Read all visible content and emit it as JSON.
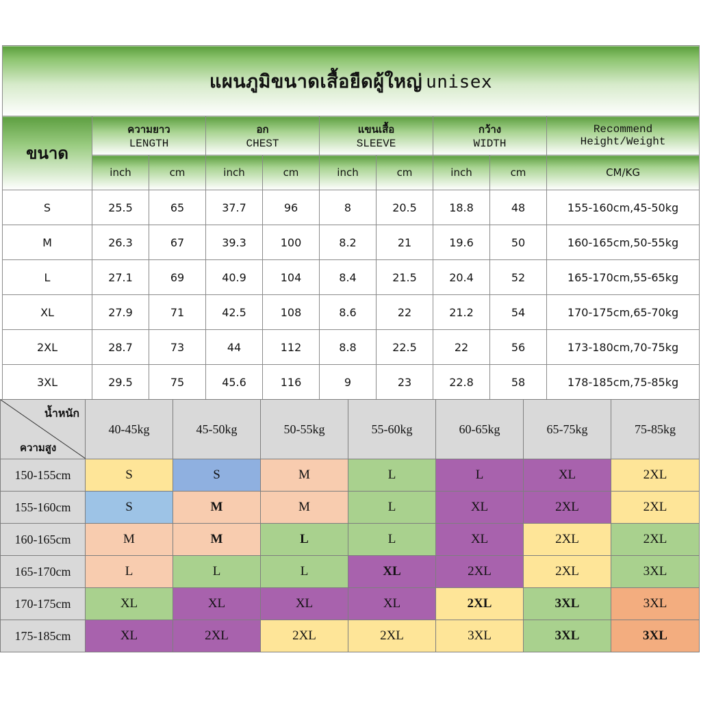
{
  "title": {
    "thai": "แผนภูมิขนาดเสื้อยืดผู้ใหญ่",
    "latin": "unisex"
  },
  "size_header": "ขนาด",
  "groups": [
    {
      "thai": "ความยาว",
      "en": "LENGTH"
    },
    {
      "thai": "อก",
      "en": "CHEST"
    },
    {
      "thai": "แขนเสื้อ",
      "en": "SLEEVE"
    },
    {
      "thai": "กว้าง",
      "en": "WIDTH"
    },
    {
      "thai": "Recommend",
      "en": "Height/Weight"
    }
  ],
  "units": {
    "inch": "inch",
    "cm": "cm",
    "recommend": "CM/KG"
  },
  "size_rows": [
    {
      "size": "S",
      "length_in": "25.5",
      "length_cm": "65",
      "chest_in": "37.7",
      "chest_cm": "96",
      "sleeve_in": "8",
      "sleeve_cm": "20.5",
      "width_in": "18.8",
      "width_cm": "48",
      "rec": "155-160cm,45-50kg"
    },
    {
      "size": "M",
      "length_in": "26.3",
      "length_cm": "67",
      "chest_in": "39.3",
      "chest_cm": "100",
      "sleeve_in": "8.2",
      "sleeve_cm": "21",
      "width_in": "19.6",
      "width_cm": "50",
      "rec": "160-165cm,50-55kg"
    },
    {
      "size": "L",
      "length_in": "27.1",
      "length_cm": "69",
      "chest_in": "40.9",
      "chest_cm": "104",
      "sleeve_in": "8.4",
      "sleeve_cm": "21.5",
      "width_in": "20.4",
      "width_cm": "52",
      "rec": "165-170cm,55-65kg"
    },
    {
      "size": "XL",
      "length_in": "27.9",
      "length_cm": "71",
      "chest_in": "42.5",
      "chest_cm": "108",
      "sleeve_in": "8.6",
      "sleeve_cm": "22",
      "width_in": "21.2",
      "width_cm": "54",
      "rec": "170-175cm,65-70kg"
    },
    {
      "size": "2XL",
      "length_in": "28.7",
      "length_cm": "73",
      "chest_in": "44",
      "chest_cm": "112",
      "sleeve_in": "8.8",
      "sleeve_cm": "22.5",
      "width_in": "22",
      "width_cm": "56",
      "rec": "173-180cm,70-75kg"
    },
    {
      "size": "3XL",
      "length_in": "29.5",
      "length_cm": "75",
      "chest_in": "45.6",
      "chest_cm": "116",
      "sleeve_in": "9",
      "sleeve_cm": "23",
      "width_in": "22.8",
      "width_cm": "58",
      "rec": "178-185cm,75-85kg"
    }
  ],
  "grid": {
    "weight_label": "น้ำหนัก",
    "height_label": "ความสูง",
    "weights": [
      "40-45kg",
      "45-50kg",
      "50-55kg",
      "55-60kg",
      "60-65kg",
      "65-75kg",
      "75-85kg"
    ],
    "rows": [
      {
        "height": "150-155cm",
        "cells": [
          {
            "v": "S",
            "c": "c-yellow"
          },
          {
            "v": "S",
            "c": "c-blue"
          },
          {
            "v": "M",
            "c": "c-peach"
          },
          {
            "v": "L",
            "c": "c-green"
          },
          {
            "v": "L",
            "c": "c-purple"
          },
          {
            "v": "XL",
            "c": "c-purple"
          },
          {
            "v": "2XL",
            "c": "c-yellow"
          }
        ]
      },
      {
        "height": "155-160cm",
        "cells": [
          {
            "v": "S",
            "c": "c-sky"
          },
          {
            "v": "M",
            "c": "c-peach",
            "b": true
          },
          {
            "v": "M",
            "c": "c-peach"
          },
          {
            "v": "L",
            "c": "c-green"
          },
          {
            "v": "XL",
            "c": "c-purple"
          },
          {
            "v": "2XL",
            "c": "c-purple"
          },
          {
            "v": "2XL",
            "c": "c-yellow"
          }
        ]
      },
      {
        "height": "160-165cm",
        "cells": [
          {
            "v": "M",
            "c": "c-peach"
          },
          {
            "v": "M",
            "c": "c-peach",
            "b": true
          },
          {
            "v": "L",
            "c": "c-green",
            "b": true
          },
          {
            "v": "L",
            "c": "c-green"
          },
          {
            "v": "XL",
            "c": "c-purple"
          },
          {
            "v": "2XL",
            "c": "c-yellow"
          },
          {
            "v": "2XL",
            "c": "c-green"
          }
        ]
      },
      {
        "height": "165-170cm",
        "cells": [
          {
            "v": "L",
            "c": "c-peach"
          },
          {
            "v": "L",
            "c": "c-green"
          },
          {
            "v": "L",
            "c": "c-green"
          },
          {
            "v": "XL",
            "c": "c-purple",
            "b": true
          },
          {
            "v": "2XL",
            "c": "c-purple"
          },
          {
            "v": "2XL",
            "c": "c-yellow"
          },
          {
            "v": "3XL",
            "c": "c-green"
          }
        ]
      },
      {
        "height": "170-175cm",
        "cells": [
          {
            "v": "XL",
            "c": "c-green"
          },
          {
            "v": "XL",
            "c": "c-purple"
          },
          {
            "v": "XL",
            "c": "c-purple"
          },
          {
            "v": "XL",
            "c": "c-purple"
          },
          {
            "v": "2XL",
            "c": "c-yellow",
            "b": true
          },
          {
            "v": "3XL",
            "c": "c-green",
            "b": true
          },
          {
            "v": "3XL",
            "c": "c-orange"
          }
        ]
      },
      {
        "height": "175-185cm",
        "cells": [
          {
            "v": "XL",
            "c": "c-purple"
          },
          {
            "v": "2XL",
            "c": "c-purple"
          },
          {
            "v": "2XL",
            "c": "c-yellow"
          },
          {
            "v": "2XL",
            "c": "c-yellow"
          },
          {
            "v": "3XL",
            "c": "c-yellow"
          },
          {
            "v": "3XL",
            "c": "c-green",
            "b": true
          },
          {
            "v": "3XL",
            "c": "c-orange",
            "b": true
          }
        ]
      }
    ]
  }
}
